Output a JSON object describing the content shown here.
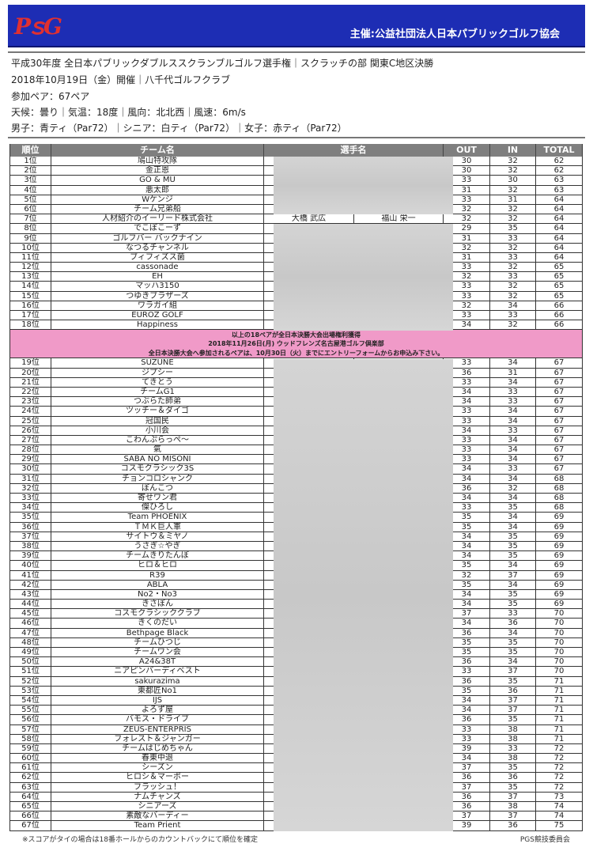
{
  "header": {
    "logo": "PGS",
    "organizer": "主催:公益社団法人日本パブリックゴルフ協会",
    "brand_color": "#1d2db4"
  },
  "info": {
    "title": "平成30年度 全日本パブリックダブルススクランブルゴルフ選手権｜スクラッチの部 関東C地区決勝",
    "date": "2018年10月19日（金）開催｜八千代ゴルフクラブ",
    "pairs": "参加ペア：67ペア",
    "weather": "天候：曇り｜気温：18度｜風向：北北西｜風速：6m/s",
    "tees": "男子：青ティ（Par72）｜シニア：白ティ（Par72）｜女子：赤ティ（Par72）"
  },
  "table": {
    "headers": {
      "rank": "順位",
      "team": "チーム名",
      "players": "選手名",
      "out": "OUT",
      "in": "IN",
      "total": "TOTAL"
    },
    "notice": [
      "以上の18ペアが全日本決勝大会出場権利獲得",
      "2018年11月26日(月) ウッドフレンズ名古屋港ゴルフ倶楽部",
      "全日本決勝大会へ参加されるペアは、10月30日（火）までにエントリーフォームからお申込み下さい。"
    ],
    "notice_color": "#f09ac8",
    "rows": [
      [
        "1位",
        "鳩山特攻隊",
        30,
        32,
        62
      ],
      [
        "2位",
        "金正恩",
        30,
        32,
        62
      ],
      [
        "3位",
        "GO & MU",
        33,
        30,
        63
      ],
      [
        "4位",
        "悪太郎",
        31,
        32,
        63
      ],
      [
        "5位",
        "Wケンジ",
        33,
        31,
        64
      ],
      [
        "6位",
        "チーム兄弟船",
        32,
        32,
        64
      ],
      [
        "7位",
        "人材紹介のイーリード株式会社",
        32,
        32,
        64,
        "大橋 武広",
        "福山 栄一"
      ],
      [
        "8位",
        "でこぼこーず",
        29,
        35,
        64
      ],
      [
        "9位",
        "ゴルフバー バックナイン",
        31,
        33,
        64
      ],
      [
        "10位",
        "なつるチャンネル",
        32,
        32,
        64
      ],
      [
        "11位",
        "ブィフィズス菌",
        31,
        33,
        64
      ],
      [
        "12位",
        "cassonade",
        33,
        32,
        65
      ],
      [
        "13位",
        "EH",
        32,
        33,
        65
      ],
      [
        "14位",
        "マッハ3150",
        33,
        32,
        65
      ],
      [
        "15位",
        "つゆきブラザーズ",
        33,
        32,
        65
      ],
      [
        "16位",
        "ワラガイ組",
        32,
        34,
        66
      ],
      [
        "17位",
        "EUROZ GOLF",
        33,
        33,
        66
      ],
      [
        "18位",
        "Happiness",
        34,
        32,
        66
      ],
      [
        "19位",
        "SUZUNE",
        33,
        34,
        67
      ],
      [
        "20位",
        "ジプシー",
        36,
        31,
        67
      ],
      [
        "21位",
        "てきとう",
        33,
        34,
        67
      ],
      [
        "22位",
        "チームG1",
        34,
        33,
        67
      ],
      [
        "23位",
        "つぶらた師弟",
        34,
        33,
        67
      ],
      [
        "24位",
        "ツッチー＆ダイゴ",
        33,
        34,
        67
      ],
      [
        "25位",
        "冠国民",
        33,
        34,
        67
      ],
      [
        "26位",
        "小川会",
        34,
        33,
        67
      ],
      [
        "27位",
        "こわんぷらっぺ～",
        33,
        34,
        67
      ],
      [
        "28位",
        "氣",
        33,
        34,
        67
      ],
      [
        "29位",
        "SABA NO MISONI",
        33,
        34,
        67
      ],
      [
        "30位",
        "コスモクラシック3S",
        34,
        33,
        67
      ],
      [
        "31位",
        "チョンコロシャンク",
        34,
        34,
        68
      ],
      [
        "32位",
        "ぽんこつ",
        36,
        32,
        68
      ],
      [
        "33位",
        "寄せワン君",
        34,
        34,
        68
      ],
      [
        "34位",
        "傑ひろし",
        33,
        35,
        68
      ],
      [
        "35位",
        "Team PHOENIX",
        35,
        34,
        69
      ],
      [
        "36位",
        "ＴＭＫ巨人軍",
        35,
        34,
        69
      ],
      [
        "37位",
        "サイトウ＆ミヤノ",
        34,
        35,
        69
      ],
      [
        "38位",
        "うさぎ☆やぎ",
        34,
        35,
        69
      ],
      [
        "39位",
        "チームきりたんぽ",
        34,
        35,
        69
      ],
      [
        "40位",
        "ヒロ＆ヒロ",
        35,
        34,
        69
      ],
      [
        "41位",
        "R39",
        32,
        37,
        69
      ],
      [
        "42位",
        "ABLA",
        35,
        34,
        69
      ],
      [
        "43位",
        "No2・No3",
        34,
        35,
        69
      ],
      [
        "44位",
        "きさぽん",
        34,
        35,
        69
      ],
      [
        "45位",
        "コスモクラシッククラブ",
        37,
        33,
        70
      ],
      [
        "46位",
        "きくのだい",
        34,
        36,
        70
      ],
      [
        "47位",
        "Bethpage Black",
        36,
        34,
        70
      ],
      [
        "48位",
        "チームひつじ",
        35,
        35,
        70
      ],
      [
        "49位",
        "チームワン会",
        35,
        35,
        70
      ],
      [
        "50位",
        "A24&38T",
        36,
        34,
        70
      ],
      [
        "51位",
        "ニアピンバーディベスト",
        33,
        37,
        70
      ],
      [
        "52位",
        "sakurazima",
        36,
        35,
        71
      ],
      [
        "53位",
        "東都匠No1",
        35,
        36,
        71
      ],
      [
        "54位",
        "IJS",
        34,
        37,
        71
      ],
      [
        "55位",
        "よろず屋",
        34,
        37,
        71
      ],
      [
        "56位",
        "バモス・ドライブ",
        36,
        35,
        71
      ],
      [
        "57位",
        "ZEUS-ENTERPRIS",
        33,
        38,
        71
      ],
      [
        "58位",
        "フォレスト＆ジャンガー",
        33,
        38,
        71
      ],
      [
        "59位",
        "チームはじめちゃん",
        39,
        33,
        72
      ],
      [
        "60位",
        "春東中退",
        34,
        38,
        72
      ],
      [
        "61位",
        "シーズン",
        37,
        35,
        72
      ],
      [
        "62位",
        "ヒロシ＆マーボー",
        36,
        36,
        72
      ],
      [
        "63位",
        "フラッシュ！",
        37,
        35,
        72
      ],
      [
        "64位",
        "ナムチャンズ",
        36,
        37,
        73
      ],
      [
        "65位",
        "シニアーズ",
        36,
        38,
        74
      ],
      [
        "66位",
        "素敵なバーディー",
        37,
        37,
        74
      ],
      [
        "67位",
        "Team Prient",
        39,
        36,
        75
      ]
    ]
  },
  "footer": {
    "note": "※スコアがタイの場合は18番ホールからのカウントバックにて順位を確定",
    "committee": "PGS競技委員会"
  }
}
